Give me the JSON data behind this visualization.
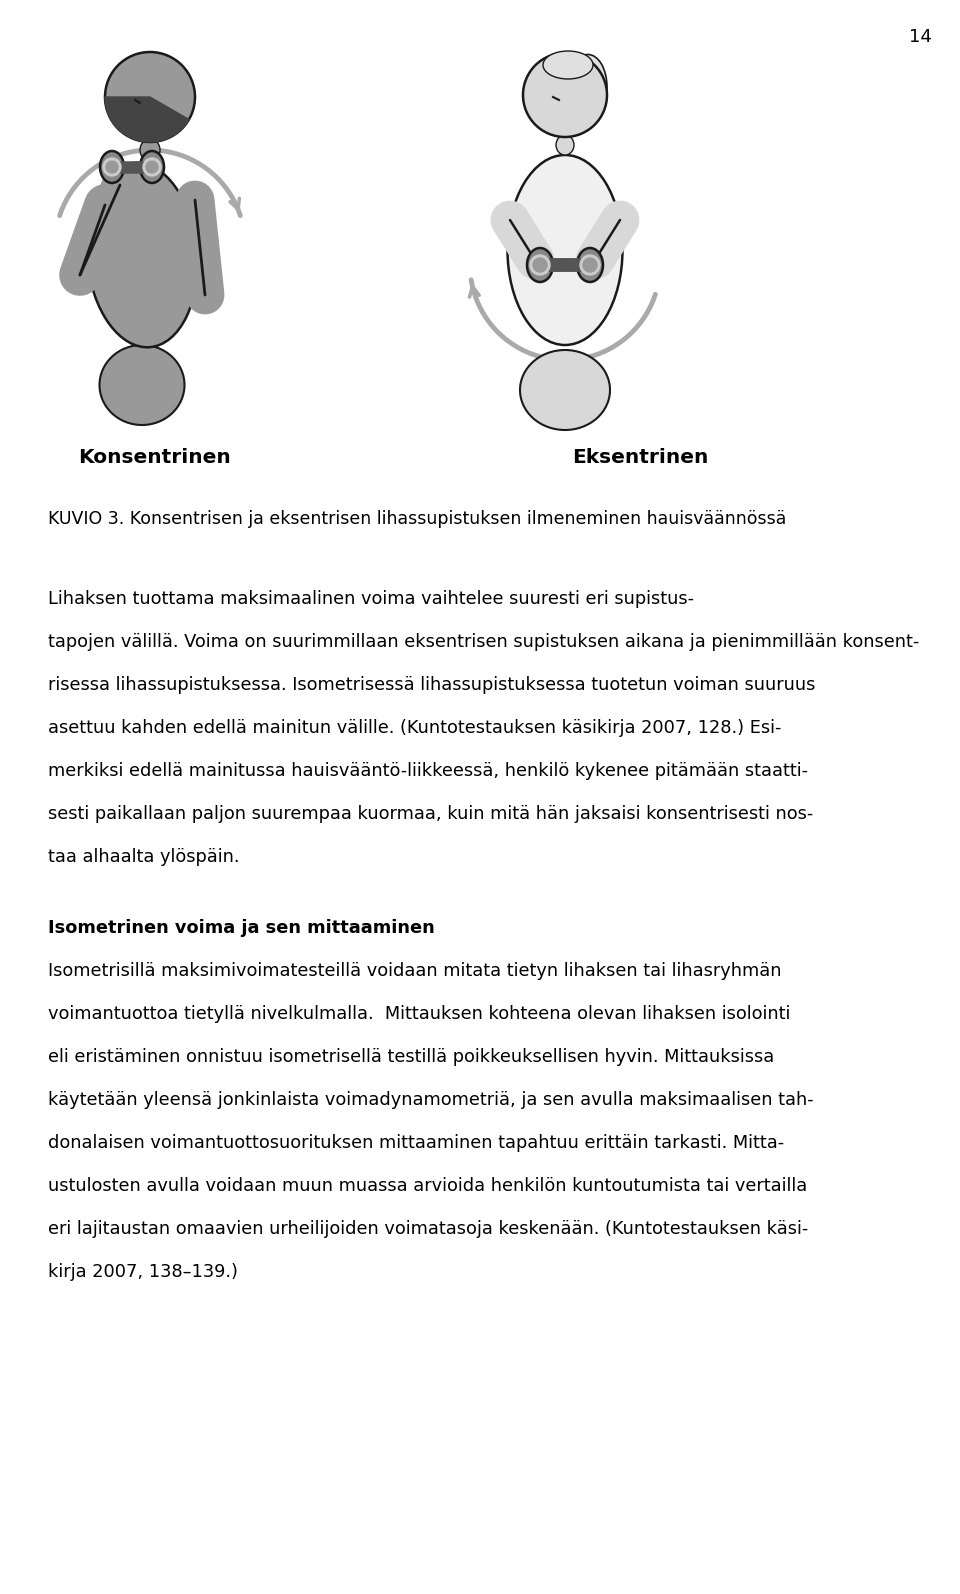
{
  "page_number": "14",
  "bg_color": "#ffffff",
  "text_color": "#000000",
  "figure_width": 9.6,
  "figure_height": 15.94,
  "label_left": "Konsentrinen",
  "label_right": "Eksentrinen",
  "caption": "KUVIO 3. Konsentrisen ja eksentrisen lihassupistuksen ilmeneminen hauisväännössä",
  "p1_line1": "Lihaksen tuottama maksimaalinen voima vaihtelee suuresti eri supistus-",
  "p1_line2": "tapojen välillä. Voima on suurimmillaan eksentrisen supistuksen aikana ja pienimmillään konsent-",
  "p1_line3": "risessa lihassupistuksessa. Isometrisessä lihassupistuksessa tuotetun voiman suuruus",
  "p1_line4": "asettuu kahden edellä mainitun välille. (Kuntotestauksen käsikirja 2007, 128.) Esi-",
  "p1_line5": "merkiksi edellä mainitussa hauisvääntö-liikkeessä, henkilö kykenee pitämään staatti-",
  "p1_line6": "sesti paikallaan paljon suurempaa kuormaa, kuin mitä hän jaksaisi konsentrisesti nos-",
  "p1_line7": "taa alhaalta ylöspäin.",
  "heading2": "Isometrinen voima ja sen mittaaminen",
  "p2_line1": "Isometrisillä maksimivoimatesteillä voidaan mitata tietyn lihaksen tai lihasryhmän",
  "p2_line2": "voimantuottoa tietyllä nivelkulmalla.  Mittauksen kohteena olevan lihaksen isolointi",
  "p2_line3": "eli eristäminen onnistuu isometrisellä testillä poikkeuksellisen hyvin. Mittauksissa",
  "p2_line4": "käytetään yleensä jonkinlaista voimadynamometriä, ja sen avulla maksimaalisen tah-",
  "p2_line5": "donalaisen voimantuottosuorituksen mittaaminen tapahtuu erittäin tarkasti. Mitta-",
  "p2_line6": "ustulosten avulla voidaan muun muassa arvioida henkilön kuntoutumista tai vertailla",
  "p2_line7": "eri lajitaustan omaavien urheilijoiden voimatasoja keskenään. (Kuntotestauksen käsi-",
  "p2_line8": "kirja 2007, 138–139.)"
}
